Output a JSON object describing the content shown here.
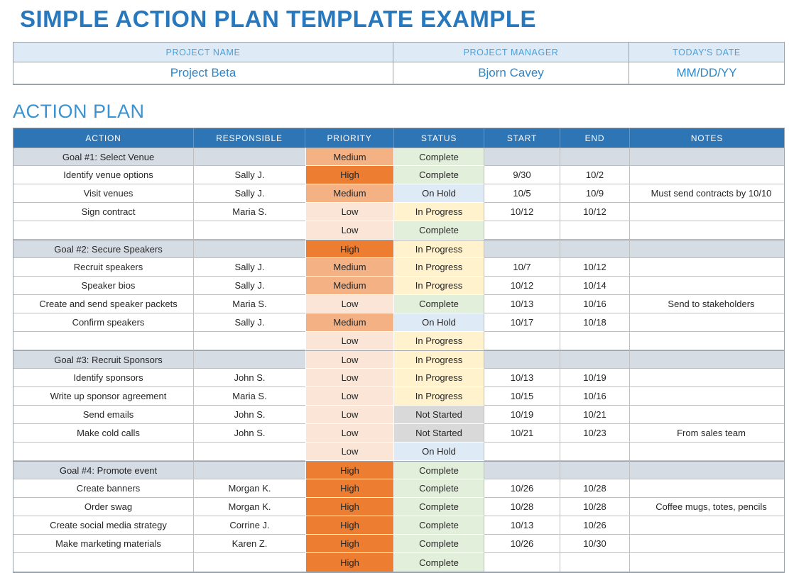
{
  "page_title": "SIMPLE ACTION PLAN TEMPLATE EXAMPLE",
  "project_info": {
    "headers": [
      "PROJECT NAME",
      "PROJECT MANAGER",
      "TODAY'S DATE"
    ],
    "values": [
      "Project Beta",
      "Bjorn Cavey",
      "MM/DD/YY"
    ]
  },
  "section_title": "ACTION PLAN",
  "table": {
    "columns": [
      "ACTION",
      "RESPONSIBLE",
      "PRIORITY",
      "STATUS",
      "START",
      "END",
      "NOTES"
    ],
    "rows": [
      {
        "goal": true,
        "action": "Goal #1:  Select Venue",
        "responsible": "",
        "priority": "Medium",
        "status": "Complete",
        "start": "",
        "end": "",
        "notes": ""
      },
      {
        "goal": false,
        "action": "Identify venue options",
        "responsible": "Sally J.",
        "priority": "High",
        "status": "Complete",
        "start": "9/30",
        "end": "10/2",
        "notes": ""
      },
      {
        "goal": false,
        "action": "Visit venues",
        "responsible": "Sally J.",
        "priority": "Medium",
        "status": "On Hold",
        "start": "10/5",
        "end": "10/9",
        "notes": "Must send contracts by 10/10"
      },
      {
        "goal": false,
        "action": "Sign contract",
        "responsible": "Maria S.",
        "priority": "Low",
        "status": "In Progress",
        "start": "10/12",
        "end": "10/12",
        "notes": ""
      },
      {
        "goal": false,
        "action": "",
        "responsible": "",
        "priority": "Low",
        "status": "Complete",
        "start": "",
        "end": "",
        "notes": ""
      },
      {
        "goal": true,
        "action": "Goal #2: Secure Speakers",
        "responsible": "",
        "priority": "High",
        "status": "In Progress",
        "start": "",
        "end": "",
        "notes": ""
      },
      {
        "goal": false,
        "action": "Recruit speakers",
        "responsible": "Sally J.",
        "priority": "Medium",
        "status": "In Progress",
        "start": "10/7",
        "end": "10/12",
        "notes": ""
      },
      {
        "goal": false,
        "action": "Speaker bios",
        "responsible": "Sally J.",
        "priority": "Medium",
        "status": "In Progress",
        "start": "10/12",
        "end": "10/14",
        "notes": ""
      },
      {
        "goal": false,
        "action": "Create and send speaker packets",
        "responsible": "Maria S.",
        "priority": "Low",
        "status": "Complete",
        "start": "10/13",
        "end": "10/16",
        "notes": "Send to stakeholders"
      },
      {
        "goal": false,
        "action": "Confirm speakers",
        "responsible": "Sally J.",
        "priority": "Medium",
        "status": "On Hold",
        "start": "10/17",
        "end": "10/18",
        "notes": ""
      },
      {
        "goal": false,
        "action": "",
        "responsible": "",
        "priority": "Low",
        "status": "In Progress",
        "start": "",
        "end": "",
        "notes": ""
      },
      {
        "goal": true,
        "action": "Goal #3: Recruit Sponsors",
        "responsible": "",
        "priority": "Low",
        "status": "In Progress",
        "start": "",
        "end": "",
        "notes": ""
      },
      {
        "goal": false,
        "action": "Identify sponsors",
        "responsible": "John S.",
        "priority": "Low",
        "status": "In Progress",
        "start": "10/13",
        "end": "10/19",
        "notes": ""
      },
      {
        "goal": false,
        "action": "Write up sponsor agreement",
        "responsible": "Maria S.",
        "priority": "Low",
        "status": "In Progress",
        "start": "10/15",
        "end": "10/16",
        "notes": ""
      },
      {
        "goal": false,
        "action": "Send emails",
        "responsible": "John S.",
        "priority": "Low",
        "status": "Not Started",
        "start": "10/19",
        "end": "10/21",
        "notes": ""
      },
      {
        "goal": false,
        "action": "Make cold calls",
        "responsible": "John S.",
        "priority": "Low",
        "status": "Not Started",
        "start": "10/21",
        "end": "10/23",
        "notes": "From sales team"
      },
      {
        "goal": false,
        "action": "",
        "responsible": "",
        "priority": "Low",
        "status": "On Hold",
        "start": "",
        "end": "",
        "notes": ""
      },
      {
        "goal": true,
        "action": "Goal #4: Promote event",
        "responsible": "",
        "priority": "High",
        "status": "Complete",
        "start": "",
        "end": "",
        "notes": ""
      },
      {
        "goal": false,
        "action": "Create banners",
        "responsible": "Morgan K.",
        "priority": "High",
        "status": "Complete",
        "start": "10/26",
        "end": "10/28",
        "notes": ""
      },
      {
        "goal": false,
        "action": "Order swag",
        "responsible": "Morgan K.",
        "priority": "High",
        "status": "Complete",
        "start": "10/28",
        "end": "10/28",
        "notes": "Coffee mugs, totes, pencils"
      },
      {
        "goal": false,
        "action": "Create social media strategy",
        "responsible": "Corrine J.",
        "priority": "High",
        "status": "Complete",
        "start": "10/13",
        "end": "10/26",
        "notes": ""
      },
      {
        "goal": false,
        "action": "Make marketing materials",
        "responsible": "Karen Z.",
        "priority": "High",
        "status": "Complete",
        "start": "10/26",
        "end": "10/30",
        "notes": ""
      },
      {
        "goal": false,
        "action": "",
        "responsible": "",
        "priority": "High",
        "status": "Complete",
        "start": "",
        "end": "",
        "notes": ""
      }
    ]
  },
  "colors": {
    "title_blue": "#2878BE",
    "section_blue": "#3B93D2",
    "table_header_bg": "#2E75B6",
    "table_header_text": "#FFFFFF",
    "goal_row_bg": "#D6DCE4",
    "grid_border": "#BFBFBF",
    "info_header_bg": "#DEEBF7",
    "info_header_text": "#47A1DD",
    "info_value_text": "#2E86C7",
    "priority": {
      "High": "#ED7D31",
      "Medium": "#F4B183",
      "Low": "#FBE5D6"
    },
    "status": {
      "Complete": "#E2EFDA",
      "On Hold": "#DEEAF6",
      "In Progress": "#FFF2CC",
      "Not Started": "#D9D9D9"
    }
  }
}
